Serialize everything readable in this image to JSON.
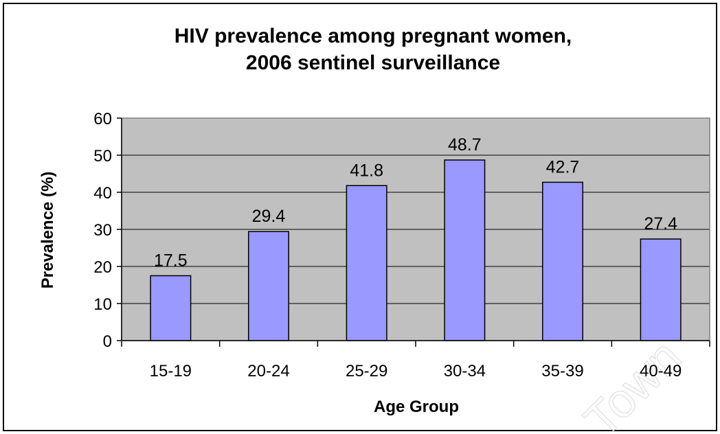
{
  "watermark": "Town",
  "chart_data": {
    "type": "bar",
    "title": [
      "HIV prevalence among pregnant women,",
      "2006 sentinel surveillance"
    ],
    "xlabel": "Age Group",
    "ylabel": "Prevalence (%)",
    "categories": [
      "15-19",
      "20-24",
      "25-29",
      "30-34",
      "35-39",
      "40-49"
    ],
    "values": [
      17.5,
      29.4,
      41.8,
      48.7,
      42.7,
      27.4
    ],
    "data_labels": [
      "17.5",
      "29.4",
      "41.8",
      "48.7",
      "42.7",
      "27.4"
    ],
    "ylim": [
      0,
      60
    ],
    "yticks": [
      0,
      10,
      20,
      30,
      40,
      50,
      60
    ],
    "grid": true,
    "legend": "none",
    "colors": {
      "bar_fill": "#9999ff",
      "bar_stroke": "#000000",
      "plot_background": "#c0c0c0",
      "gridline": "#000000"
    }
  }
}
